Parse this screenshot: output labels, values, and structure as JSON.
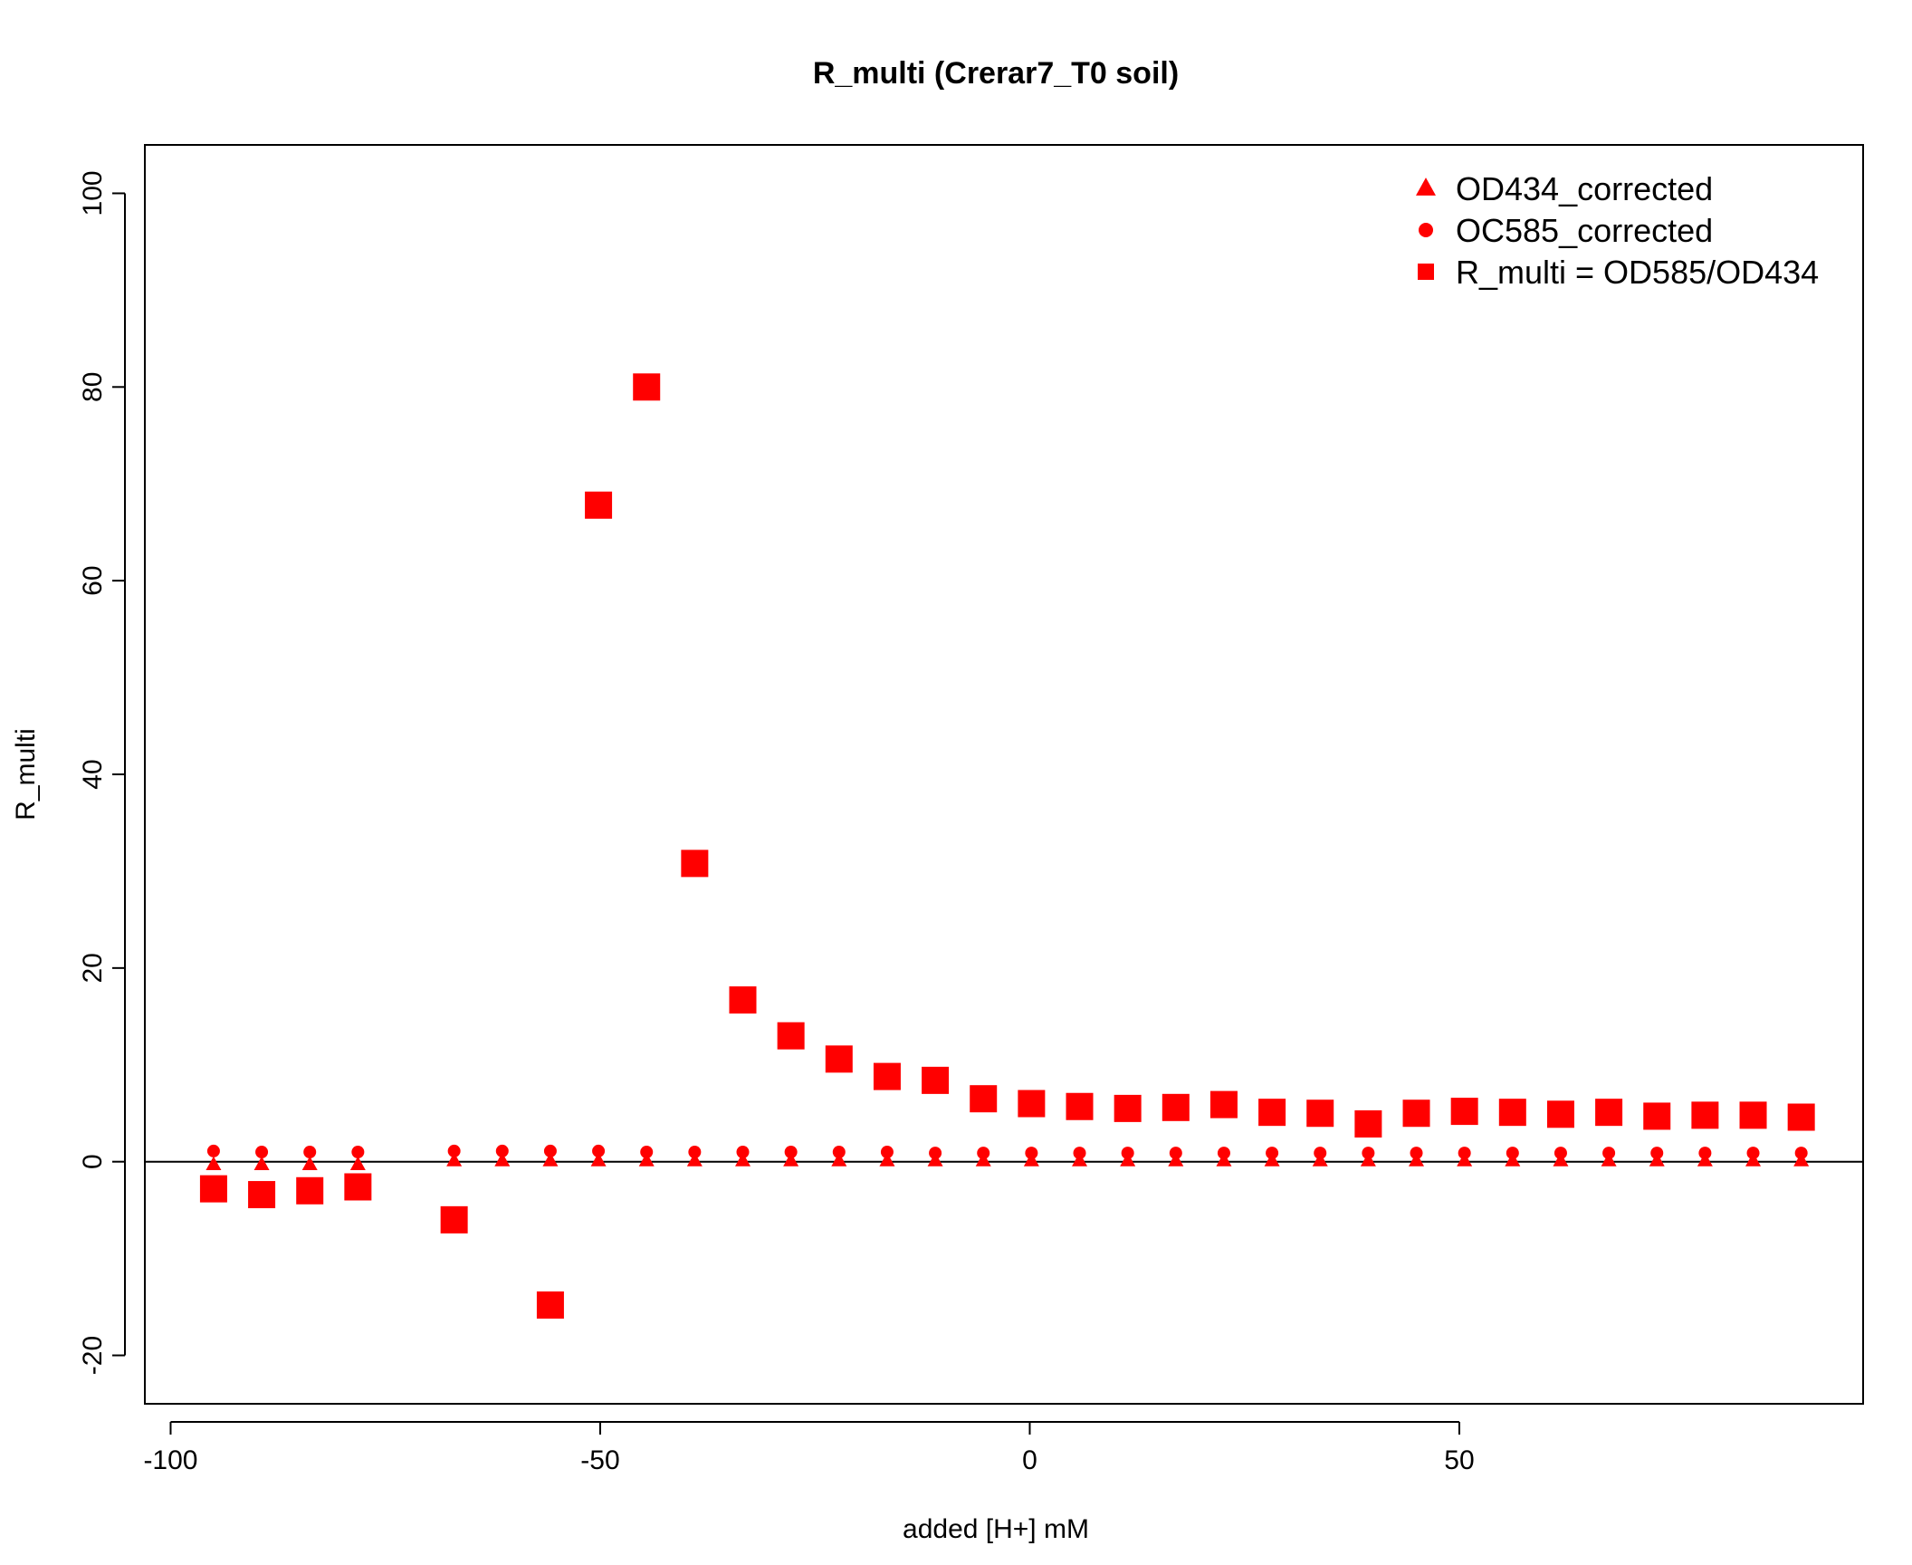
{
  "chart_data": {
    "type": "scatter",
    "title": "R_multi (Crerar7_T0 soil)",
    "xlabel": "added [H+] mM",
    "ylabel": "R_multi",
    "xlim": [
      -103,
      97
    ],
    "ylim": [
      -25,
      105
    ],
    "xticks": [
      -100,
      -50,
      0,
      50
    ],
    "yticks": [
      -20,
      0,
      20,
      40,
      60,
      80,
      100
    ],
    "xtick_labels": [
      "-100",
      "-50",
      "0",
      "50"
    ],
    "ytick_labels": [
      "-20",
      "0",
      "20",
      "40",
      "60",
      "80",
      "100"
    ],
    "hline": 0,
    "grid": false,
    "legend_position": "top-right",
    "color": "#ff0000",
    "series": [
      {
        "name": "OD434_corrected",
        "marker": "triangle",
        "x": [
          -95,
          -89.4,
          -83.8,
          -78.2,
          -67,
          -61.4,
          -55.8,
          -50.2,
          -44.6,
          -39,
          -33.4,
          -27.8,
          -22.2,
          -16.6,
          -11,
          -5.4,
          0.2,
          5.8,
          11.4,
          17,
          22.6,
          28.2,
          33.8,
          39.4,
          45,
          50.6,
          56.2,
          61.8,
          67.4,
          73,
          78.6,
          84.2,
          89.8
        ],
        "y": [
          -0.3,
          -0.3,
          -0.3,
          -0.3,
          0.1,
          0.1,
          0.1,
          0.1,
          0.1,
          0.1,
          0.1,
          0.1,
          0.1,
          0.1,
          0.1,
          0.1,
          0.1,
          0.1,
          0.1,
          0.1,
          0.1,
          0.1,
          0.1,
          0.1,
          0.1,
          0.1,
          0.1,
          0.1,
          0.1,
          0.1,
          0.1,
          0.1,
          0.1
        ]
      },
      {
        "name": "OC585_corrected",
        "marker": "circle",
        "x": [
          -95,
          -89.4,
          -83.8,
          -78.2,
          -67,
          -61.4,
          -55.8,
          -50.2,
          -44.6,
          -39,
          -33.4,
          -27.8,
          -22.2,
          -16.6,
          -11,
          -5.4,
          0.2,
          5.8,
          11.4,
          17,
          22.6,
          28.2,
          33.8,
          39.4,
          45,
          50.6,
          56.2,
          61.8,
          67.4,
          73,
          78.6,
          84.2,
          89.8
        ],
        "y": [
          1.1,
          1.0,
          1.0,
          1.0,
          1.1,
          1.1,
          1.1,
          1.1,
          1.0,
          1.0,
          1.0,
          1.0,
          1.0,
          1.0,
          0.9,
          0.9,
          0.9,
          0.9,
          0.9,
          0.9,
          0.9,
          0.9,
          0.9,
          0.9,
          0.9,
          0.9,
          0.9,
          0.9,
          0.9,
          0.9,
          0.9,
          0.9,
          0.9
        ]
      },
      {
        "name": "R_multi = OD585/OD434",
        "marker": "square",
        "x": [
          -95,
          -89.4,
          -83.8,
          -78.2,
          -67,
          -55.8,
          -50.2,
          -44.6,
          -39,
          -33.4,
          -27.8,
          -22.2,
          -16.6,
          -11,
          -5.4,
          0.2,
          5.8,
          11.4,
          17,
          22.6,
          28.2,
          33.8,
          39.4,
          45,
          50.6,
          56.2,
          61.8,
          67.4,
          73,
          78.6,
          84.2,
          89.8
        ],
        "y": [
          -2.8,
          -3.4,
          -3.0,
          -2.6,
          -6.0,
          -14.8,
          67.8,
          80.0,
          30.8,
          16.7,
          13.0,
          10.6,
          8.8,
          8.4,
          6.5,
          6.0,
          5.7,
          5.5,
          5.6,
          5.9,
          5.1,
          5.0,
          3.9,
          5.0,
          5.2,
          5.1,
          4.9,
          5.1,
          4.7,
          4.8,
          4.8,
          4.6
        ]
      }
    ]
  }
}
